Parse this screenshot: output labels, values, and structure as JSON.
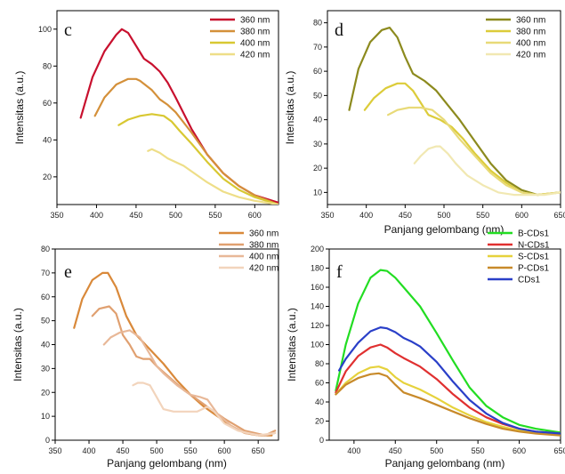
{
  "chart_data": [
    {
      "panel": "c",
      "type": "line",
      "xlabel": "",
      "ylabel": "Intensitas (a.u.)",
      "xlim": [
        350,
        630
      ],
      "ylim": [
        5,
        110
      ],
      "xticks": [
        350,
        400,
        450,
        500,
        550,
        600
      ],
      "yticks": [
        20,
        40,
        60,
        80,
        100
      ],
      "legend_position": "top-right",
      "series": [
        {
          "name": "360 nm",
          "color": "#c8102e",
          "x": [
            380,
            395,
            410,
            425,
            432,
            440,
            450,
            460,
            470,
            480,
            490,
            500,
            520,
            540,
            560,
            580,
            600,
            630
          ],
          "y": [
            52,
            74,
            88,
            97,
            100,
            98,
            91,
            84,
            81,
            77,
            71,
            63,
            46,
            32,
            22,
            15,
            10,
            6
          ]
        },
        {
          "name": "380 nm",
          "color": "#d4903a",
          "x": [
            398,
            410,
            425,
            440,
            450,
            455,
            470,
            480,
            490,
            500,
            520,
            540,
            560,
            580,
            600,
            630
          ],
          "y": [
            53,
            63,
            70,
            73,
            73,
            72,
            67,
            62,
            59,
            55,
            44,
            32,
            22,
            15,
            10,
            5
          ]
        },
        {
          "name": "400 nm",
          "color": "#d8c832",
          "x": [
            428,
            440,
            455,
            470,
            485,
            495,
            505,
            520,
            540,
            560,
            580,
            600,
            630
          ],
          "y": [
            48,
            51,
            53,
            54,
            53,
            50,
            45,
            38,
            28,
            19,
            13,
            9,
            5
          ]
        },
        {
          "name": "420 nm",
          "color": "#eede88",
          "x": [
            465,
            470,
            480,
            490,
            500,
            510,
            520,
            540,
            560,
            580,
            600,
            630
          ],
          "y": [
            34,
            35,
            33,
            30,
            28,
            26,
            23,
            17,
            12,
            9,
            7,
            5
          ]
        }
      ]
    },
    {
      "panel": "d",
      "type": "line",
      "xlabel": "Panjang gelombang (nm)",
      "ylabel": "Intensitas (a.u.)",
      "xlim": [
        350,
        650
      ],
      "ylim": [
        5,
        85
      ],
      "xticks": [
        350,
        400,
        450,
        500,
        550,
        600,
        650
      ],
      "yticks": [
        10,
        20,
        30,
        40,
        50,
        60,
        70,
        80
      ],
      "legend_position": "top-right",
      "series": [
        {
          "name": "360 nm",
          "color": "#8c8a1e",
          "x": [
            378,
            390,
            405,
            420,
            430,
            440,
            450,
            460,
            475,
            490,
            505,
            520,
            540,
            560,
            580,
            600,
            620,
            650
          ],
          "y": [
            44,
            61,
            72,
            77,
            78,
            74,
            66,
            59,
            56,
            52,
            46,
            40,
            31,
            22,
            15,
            11,
            9,
            10
          ]
        },
        {
          "name": "380 nm",
          "color": "#dccc3a",
          "x": [
            398,
            410,
            425,
            440,
            450,
            460,
            470,
            480,
            495,
            510,
            525,
            540,
            560,
            580,
            600,
            620,
            650
          ],
          "y": [
            44,
            49,
            53,
            55,
            55,
            52,
            47,
            42,
            40,
            37,
            32,
            26,
            19,
            14,
            10,
            9,
            10
          ]
        },
        {
          "name": "400 nm",
          "color": "#e8da78",
          "x": [
            428,
            440,
            455,
            470,
            485,
            500,
            510,
            520,
            540,
            560,
            580,
            600,
            620,
            650
          ],
          "y": [
            42,
            44,
            45,
            45,
            44,
            40,
            36,
            32,
            25,
            18,
            13,
            10,
            9,
            10
          ]
        },
        {
          "name": "420 nm",
          "color": "#f1e8b2",
          "x": [
            462,
            470,
            480,
            490,
            495,
            505,
            515,
            530,
            550,
            570,
            590,
            610,
            630,
            650
          ],
          "y": [
            22,
            25,
            28,
            29,
            29,
            26,
            22,
            17,
            13,
            10,
            9,
            9,
            9,
            10
          ]
        }
      ]
    },
    {
      "panel": "e",
      "type": "line",
      "xlabel": "Panjang gelombang (nm)",
      "ylabel": "Intensitas (a.u.)",
      "xlim": [
        350,
        680
      ],
      "ylim": [
        0,
        80
      ],
      "xticks": [
        350,
        400,
        450,
        500,
        550,
        600,
        650
      ],
      "yticks": [
        0,
        10,
        20,
        30,
        40,
        50,
        60,
        70,
        80
      ],
      "legend_position": "top-right",
      "series": [
        {
          "name": "360 nm",
          "color": "#d9893a",
          "x": [
            378,
            390,
            405,
            420,
            428,
            440,
            455,
            470,
            490,
            510,
            530,
            550,
            570,
            590,
            610,
            630,
            650,
            670
          ],
          "y": [
            47,
            59,
            67,
            70,
            70,
            64,
            52,
            44,
            38,
            32,
            25,
            19,
            14,
            10,
            6,
            3,
            2,
            2
          ]
        },
        {
          "name": "380 nm",
          "color": "#e0a070",
          "x": [
            405,
            415,
            430,
            440,
            450,
            460,
            470,
            480,
            490,
            500,
            520,
            540,
            560,
            580,
            600,
            630,
            660,
            675
          ],
          "y": [
            52,
            55,
            56,
            53,
            44,
            40,
            35,
            34,
            34,
            31,
            26,
            21,
            17,
            13,
            9,
            4,
            2,
            4
          ]
        },
        {
          "name": "400 nm",
          "color": "#e8b898",
          "x": [
            422,
            432,
            445,
            460,
            475,
            490,
            500,
            510,
            530,
            550,
            565,
            575,
            590,
            610,
            630,
            660,
            675
          ],
          "y": [
            40,
            43,
            45,
            46,
            43,
            36,
            31,
            28,
            23,
            19,
            18,
            17,
            11,
            6,
            3,
            2,
            3
          ]
        },
        {
          "name": "420 nm",
          "color": "#f2d4bc",
          "x": [
            465,
            472,
            480,
            490,
            500,
            510,
            525,
            540,
            560,
            575,
            585,
            600,
            620,
            650,
            675
          ],
          "y": [
            23,
            24,
            24,
            23,
            18,
            13,
            12,
            12,
            12,
            14,
            12,
            7,
            4,
            2,
            3
          ]
        }
      ]
    },
    {
      "panel": "f",
      "type": "line",
      "xlabel": "Panjang gelombang (nm)",
      "ylabel": "Intensitas (a.u.)",
      "xlim": [
        370,
        650
      ],
      "ylim": [
        0,
        200
      ],
      "xticks": [
        400,
        450,
        500,
        550,
        600,
        650
      ],
      "yticks": [
        0,
        20,
        40,
        60,
        80,
        100,
        120,
        140,
        160,
        180,
        200
      ],
      "legend_position": "top-right",
      "series": [
        {
          "name": "B-CDs1",
          "color": "#22dd22",
          "x": [
            378,
            390,
            405,
            420,
            432,
            440,
            450,
            460,
            480,
            500,
            520,
            540,
            560,
            580,
            600,
            620,
            650
          ],
          "y": [
            52,
            100,
            143,
            170,
            178,
            177,
            170,
            160,
            140,
            112,
            83,
            55,
            36,
            24,
            16,
            12,
            8
          ]
        },
        {
          "name": "N-CDs1",
          "color": "#e03030",
          "x": [
            378,
            390,
            405,
            420,
            432,
            440,
            450,
            460,
            480,
            500,
            520,
            540,
            560,
            580,
            600,
            620,
            650
          ],
          "y": [
            50,
            72,
            88,
            97,
            100,
            97,
            91,
            86,
            77,
            64,
            48,
            34,
            24,
            17,
            12,
            9,
            7
          ]
        },
        {
          "name": "S-CDs1",
          "color": "#e6d23c",
          "x": [
            378,
            390,
            405,
            420,
            430,
            440,
            450,
            460,
            480,
            500,
            520,
            540,
            560,
            580,
            600,
            620,
            650
          ],
          "y": [
            48,
            60,
            70,
            76,
            77,
            74,
            66,
            60,
            53,
            44,
            34,
            26,
            19,
            14,
            10,
            8,
            6
          ]
        },
        {
          "name": "P-CDs1",
          "color": "#c88a2a",
          "x": [
            378,
            390,
            405,
            420,
            430,
            440,
            450,
            460,
            480,
            500,
            520,
            540,
            560,
            580,
            600,
            620,
            650
          ],
          "y": [
            48,
            58,
            65,
            69,
            70,
            67,
            58,
            50,
            44,
            37,
            30,
            23,
            17,
            12,
            9,
            7,
            5
          ]
        },
        {
          "name": "CDs1",
          "color": "#2a3fc8",
          "x": [
            382,
            390,
            405,
            420,
            432,
            440,
            450,
            460,
            470,
            480,
            500,
            520,
            540,
            560,
            580,
            600,
            620,
            650
          ],
          "y": [
            73,
            85,
            102,
            114,
            118,
            117,
            113,
            107,
            103,
            98,
            82,
            61,
            42,
            28,
            18,
            12,
            9,
            7
          ]
        }
      ]
    }
  ]
}
